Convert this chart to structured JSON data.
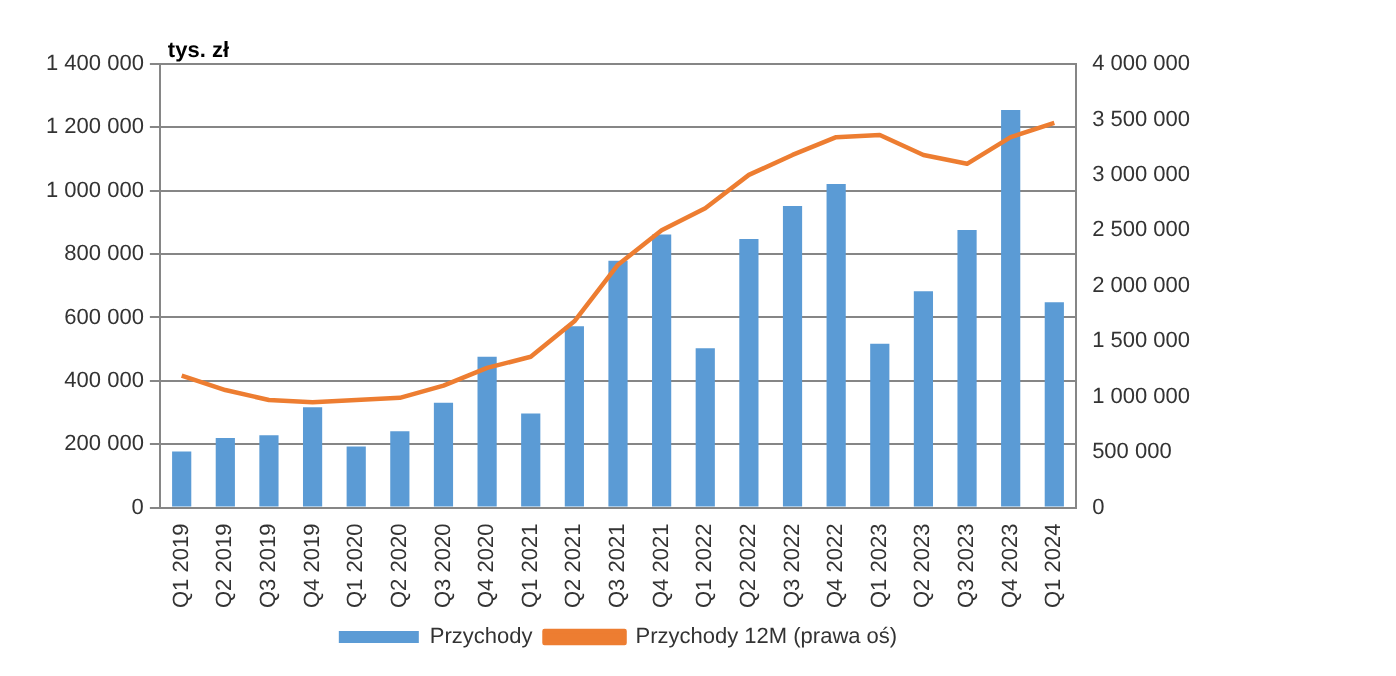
{
  "chart_data": {
    "type": "bar",
    "ylabel": "tys. zł",
    "categories": [
      "Q1 2019",
      "Q2 2019",
      "Q3 2019",
      "Q4 2019",
      "Q1 2020",
      "Q2 2020",
      "Q3 2020",
      "Q4 2020",
      "Q1 2021",
      "Q2 2021",
      "Q3 2021",
      "Q4 2021",
      "Q1 2022",
      "Q2 2022",
      "Q3 2022",
      "Q4 2022",
      "Q1 2023",
      "Q2 2023",
      "Q3 2023",
      "Q4 2023",
      "Q1 2024"
    ],
    "series": [
      {
        "name": "Przychody",
        "color": "#5b9bd5",
        "values": [
          177000,
          220000,
          228000,
          317000,
          193000,
          241000,
          331000,
          476000,
          297000,
          572000,
          779000,
          862000,
          503000,
          848000,
          952000,
          1021000,
          517000,
          683000,
          876000,
          1255000,
          648000
        ]
      },
      {
        "name": "Przychody 12M (prawa oś)",
        "type": "line",
        "axis": "y2",
        "color": "#ed7d31",
        "values": [
          1190000,
          1060000,
          970000,
          950000,
          970000,
          990000,
          1100000,
          1260000,
          1360000,
          1680000,
          2190000,
          2500000,
          2700000,
          3000000,
          3180000,
          3340000,
          3360000,
          3180000,
          3100000,
          3340000,
          3470000
        ]
      }
    ],
    "ylim": [
      0,
      1400000
    ],
    "yticks": [
      0,
      200000,
      400000,
      600000,
      800000,
      1000000,
      1200000,
      1400000
    ],
    "y2lim": [
      0,
      4000000
    ],
    "y2ticks": [
      0,
      500000,
      1000000,
      1500000,
      2000000,
      2500000,
      3000000,
      3500000,
      4000000
    ],
    "grid": "y",
    "legend": "bottom",
    "marker": "none",
    "line_style": "solid"
  }
}
